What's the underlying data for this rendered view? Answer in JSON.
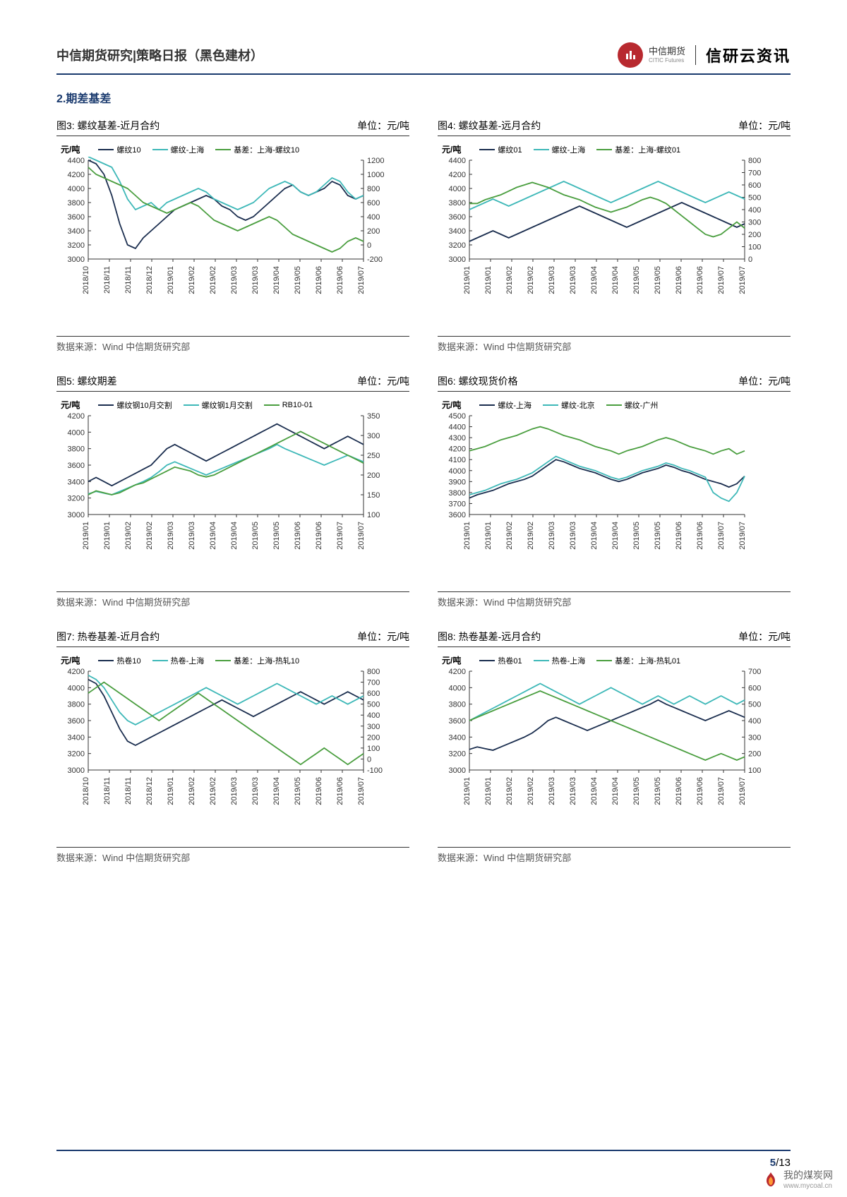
{
  "header": {
    "left": "中信期货研究|策略日报（黑色建材）",
    "logo_main": "中信期货",
    "logo_sub": "CITIC Futures",
    "brand": "信研云资讯"
  },
  "section_title": "2.期差基差",
  "data_source": "数据来源：Wind  中信期货研究部",
  "colors": {
    "dark_navy": "#1a2d4e",
    "teal": "#3eb8b8",
    "green": "#4a9e3f",
    "axis": "#333333",
    "grid": "#cccccc",
    "header_blue": "#1a3a6e",
    "logo_red": "#b8292f"
  },
  "charts": [
    {
      "id": "chart3",
      "title": "图3: 螺纹基差-近月合约",
      "unit": "单位：元/吨",
      "y_left_title": "元/吨",
      "y_left": {
        "min": 3000,
        "max": 4400,
        "step": 200
      },
      "y_right": {
        "min": -200,
        "max": 1200,
        "step": 200
      },
      "x_labels": [
        "2018/10",
        "2018/11",
        "2018/11",
        "2018/12",
        "2019/01",
        "2019/02",
        "2019/02",
        "2019/03",
        "2019/03",
        "2019/04",
        "2019/05",
        "2019/06",
        "2019/06",
        "2019/07"
      ],
      "legend": [
        {
          "name": "螺纹10",
          "color": "#1a2d4e"
        },
        {
          "name": "螺纹-上海",
          "color": "#3eb8b8"
        },
        {
          "name": "基差：上海-螺纹10",
          "color": "#4a9e3f"
        }
      ],
      "series": [
        {
          "color": "#1a2d4e",
          "axis": "left",
          "data": [
            4400,
            4350,
            4200,
            3900,
            3500,
            3200,
            3150,
            3300,
            3400,
            3500,
            3600,
            3700,
            3750,
            3800,
            3850,
            3900,
            3850,
            3750,
            3700,
            3600,
            3550,
            3600,
            3700,
            3800,
            3900,
            4000,
            4050,
            3950,
            3900,
            3950,
            4000,
            4100,
            4050,
            3900,
            3850,
            3900
          ]
        },
        {
          "color": "#3eb8b8",
          "axis": "left",
          "data": [
            4450,
            4400,
            4350,
            4300,
            4100,
            3850,
            3700,
            3750,
            3800,
            3700,
            3800,
            3850,
            3900,
            3950,
            4000,
            3950,
            3850,
            3800,
            3750,
            3700,
            3750,
            3800,
            3900,
            4000,
            4050,
            4100,
            4050,
            3950,
            3900,
            3950,
            4050,
            4150,
            4100,
            3950,
            3850,
            3900
          ]
        },
        {
          "color": "#4a9e3f",
          "axis": "right",
          "data": [
            1100,
            1000,
            950,
            900,
            850,
            800,
            700,
            600,
            550,
            500,
            450,
            500,
            550,
            600,
            550,
            450,
            350,
            300,
            250,
            200,
            250,
            300,
            350,
            400,
            350,
            250,
            150,
            100,
            50,
            0,
            -50,
            -100,
            -50,
            50,
            100,
            50
          ]
        }
      ]
    },
    {
      "id": "chart4",
      "title": "图4: 螺纹基差-远月合约",
      "unit": "单位：元/吨",
      "y_left_title": "元/吨",
      "y_left": {
        "min": 3000,
        "max": 4400,
        "step": 200
      },
      "y_right": {
        "min": 0,
        "max": 800,
        "step": 100
      },
      "x_labels": [
        "2019/01",
        "2019/01",
        "2019/02",
        "2019/02",
        "2019/03",
        "2019/03",
        "2019/04",
        "2019/04",
        "2019/05",
        "2019/05",
        "2019/06",
        "2019/06",
        "2019/07",
        "2019/07"
      ],
      "legend": [
        {
          "name": "螺纹01",
          "color": "#1a2d4e"
        },
        {
          "name": "螺纹-上海",
          "color": "#3eb8b8"
        },
        {
          "name": "基差：上海-螺纹01",
          "color": "#4a9e3f"
        }
      ],
      "series": [
        {
          "color": "#1a2d4e",
          "axis": "left",
          "data": [
            3250,
            3300,
            3350,
            3400,
            3350,
            3300,
            3350,
            3400,
            3450,
            3500,
            3550,
            3600,
            3650,
            3700,
            3750,
            3700,
            3650,
            3600,
            3550,
            3500,
            3450,
            3500,
            3550,
            3600,
            3650,
            3700,
            3750,
            3800,
            3750,
            3700,
            3650,
            3600,
            3550,
            3500,
            3450,
            3500
          ]
        },
        {
          "color": "#3eb8b8",
          "axis": "left",
          "data": [
            3700,
            3750,
            3800,
            3850,
            3800,
            3750,
            3800,
            3850,
            3900,
            3950,
            4000,
            4050,
            4100,
            4050,
            4000,
            3950,
            3900,
            3850,
            3800,
            3850,
            3900,
            3950,
            4000,
            4050,
            4100,
            4050,
            4000,
            3950,
            3900,
            3850,
            3800,
            3850,
            3900,
            3950,
            3900,
            3850
          ]
        },
        {
          "color": "#4a9e3f",
          "axis": "right",
          "data": [
            450,
            450,
            480,
            500,
            520,
            550,
            580,
            600,
            620,
            600,
            580,
            550,
            520,
            500,
            480,
            450,
            420,
            400,
            380,
            400,
            420,
            450,
            480,
            500,
            480,
            450,
            400,
            350,
            300,
            250,
            200,
            180,
            200,
            250,
            300,
            250
          ]
        }
      ]
    },
    {
      "id": "chart5",
      "title": "图5: 螺纹期差",
      "unit": "单位：元/吨",
      "y_left_title": "元/吨",
      "y_left": {
        "min": 3000,
        "max": 4200,
        "step": 200
      },
      "y_right": {
        "min": 100,
        "max": 350,
        "step": 50
      },
      "x_labels": [
        "2019/01",
        "2019/01",
        "2019/02",
        "2019/02",
        "2019/03",
        "2019/03",
        "2019/04",
        "2019/04",
        "2019/05",
        "2019/05",
        "2019/06",
        "2019/06",
        "2019/07",
        "2019/07"
      ],
      "legend": [
        {
          "name": "螺纹钢10月交割",
          "color": "#1a2d4e"
        },
        {
          "name": "螺纹钢1月交割",
          "color": "#3eb8b8"
        },
        {
          "name": "RB10-01",
          "color": "#4a9e3f"
        }
      ],
      "series": [
        {
          "color": "#1a2d4e",
          "axis": "left",
          "data": [
            3400,
            3450,
            3400,
            3350,
            3400,
            3450,
            3500,
            3550,
            3600,
            3700,
            3800,
            3850,
            3800,
            3750,
            3700,
            3650,
            3700,
            3750,
            3800,
            3850,
            3900,
            3950,
            4000,
            4050,
            4100,
            4050,
            4000,
            3950,
            3900,
            3850,
            3800,
            3850,
            3900,
            3950,
            3900,
            3850
          ]
        },
        {
          "color": "#3eb8b8",
          "axis": "left",
          "data": [
            3250,
            3280,
            3260,
            3240,
            3280,
            3320,
            3360,
            3400,
            3450,
            3520,
            3600,
            3640,
            3600,
            3560,
            3520,
            3480,
            3520,
            3560,
            3600,
            3640,
            3680,
            3720,
            3760,
            3800,
            3850,
            3800,
            3760,
            3720,
            3680,
            3640,
            3600,
            3640,
            3680,
            3720,
            3680,
            3640
          ]
        },
        {
          "color": "#4a9e3f",
          "axis": "right",
          "data": [
            150,
            160,
            155,
            150,
            155,
            165,
            175,
            180,
            190,
            200,
            210,
            220,
            215,
            210,
            200,
            195,
            200,
            210,
            220,
            230,
            240,
            250,
            260,
            270,
            280,
            290,
            300,
            310,
            300,
            290,
            280,
            270,
            260,
            250,
            240,
            230
          ]
        }
      ]
    },
    {
      "id": "chart6",
      "title": "图6: 螺纹现货价格",
      "unit": "单位：元/吨",
      "y_left_title": "元/吨",
      "y_left": {
        "min": 3600,
        "max": 4500,
        "step": 100
      },
      "y_right": null,
      "x_labels": [
        "2019/01",
        "2019/01",
        "2019/02",
        "2019/02",
        "2019/03",
        "2019/03",
        "2019/04",
        "2019/04",
        "2019/05",
        "2019/05",
        "2019/06",
        "2019/06",
        "2019/07",
        "2019/07"
      ],
      "legend": [
        {
          "name": "螺纹-上海",
          "color": "#1a2d4e"
        },
        {
          "name": "螺纹-北京",
          "color": "#3eb8b8"
        },
        {
          "name": "螺纹-广州",
          "color": "#4a9e3f"
        }
      ],
      "series": [
        {
          "color": "#1a2d4e",
          "axis": "left",
          "data": [
            3750,
            3780,
            3800,
            3820,
            3850,
            3880,
            3900,
            3920,
            3950,
            4000,
            4050,
            4100,
            4080,
            4050,
            4020,
            4000,
            3980,
            3950,
            3920,
            3900,
            3920,
            3950,
            3980,
            4000,
            4020,
            4050,
            4030,
            4000,
            3980,
            3950,
            3920,
            3900,
            3880,
            3850,
            3880,
            3950
          ]
        },
        {
          "color": "#3eb8b8",
          "axis": "left",
          "data": [
            3780,
            3800,
            3820,
            3850,
            3880,
            3900,
            3920,
            3950,
            3980,
            4030,
            4080,
            4130,
            4100,
            4070,
            4040,
            4020,
            4000,
            3970,
            3940,
            3920,
            3940,
            3970,
            4000,
            4020,
            4040,
            4070,
            4050,
            4020,
            4000,
            3970,
            3940,
            3800,
            3750,
            3720,
            3800,
            3950
          ]
        },
        {
          "color": "#4a9e3f",
          "axis": "left",
          "data": [
            4180,
            4200,
            4220,
            4250,
            4280,
            4300,
            4320,
            4350,
            4380,
            4400,
            4380,
            4350,
            4320,
            4300,
            4280,
            4250,
            4220,
            4200,
            4180,
            4150,
            4180,
            4200,
            4220,
            4250,
            4280,
            4300,
            4280,
            4250,
            4220,
            4200,
            4180,
            4150,
            4180,
            4200,
            4150,
            4180
          ]
        }
      ]
    },
    {
      "id": "chart7",
      "title": "图7: 热卷基差-近月合约",
      "unit": "单位：元/吨",
      "y_left_title": "元/吨",
      "y_left": {
        "min": 3000,
        "max": 4200,
        "step": 200
      },
      "y_right": {
        "min": -100,
        "max": 800,
        "step": 100
      },
      "x_labels": [
        "2018/10",
        "2018/11",
        "2018/11",
        "2018/12",
        "2019/01",
        "2019/02",
        "2019/02",
        "2019/03",
        "2019/03",
        "2019/04",
        "2019/05",
        "2019/06",
        "2019/06",
        "2019/07"
      ],
      "legend": [
        {
          "name": "热卷10",
          "color": "#1a2d4e"
        },
        {
          "name": "热卷-上海",
          "color": "#3eb8b8"
        },
        {
          "name": "基差：上海-热轧10",
          "color": "#4a9e3f"
        }
      ],
      "series": [
        {
          "color": "#1a2d4e",
          "axis": "left",
          "data": [
            4100,
            4050,
            3900,
            3700,
            3500,
            3350,
            3300,
            3350,
            3400,
            3450,
            3500,
            3550,
            3600,
            3650,
            3700,
            3750,
            3800,
            3850,
            3800,
            3750,
            3700,
            3650,
            3700,
            3750,
            3800,
            3850,
            3900,
            3950,
            3900,
            3850,
            3800,
            3850,
            3900,
            3950,
            3900,
            3850
          ]
        },
        {
          "color": "#3eb8b8",
          "axis": "left",
          "data": [
            4150,
            4100,
            4000,
            3850,
            3700,
            3600,
            3550,
            3600,
            3650,
            3700,
            3750,
            3800,
            3850,
            3900,
            3950,
            4000,
            3950,
            3900,
            3850,
            3800,
            3850,
            3900,
            3950,
            4000,
            4050,
            4000,
            3950,
            3900,
            3850,
            3800,
            3850,
            3900,
            3850,
            3800,
            3850,
            3900
          ]
        },
        {
          "color": "#4a9e3f",
          "axis": "right",
          "data": [
            600,
            650,
            700,
            650,
            600,
            550,
            500,
            450,
            400,
            350,
            400,
            450,
            500,
            550,
            600,
            550,
            500,
            450,
            400,
            350,
            300,
            250,
            200,
            150,
            100,
            50,
            0,
            -50,
            0,
            50,
            100,
            50,
            0,
            -50,
            0,
            50
          ]
        }
      ]
    },
    {
      "id": "chart8",
      "title": "图8: 热卷基差-远月合约",
      "unit": "单位：元/吨",
      "y_left_title": "元/吨",
      "y_left": {
        "min": 3000,
        "max": 4200,
        "step": 200
      },
      "y_right": {
        "min": 100,
        "max": 700,
        "step": 100
      },
      "x_labels": [
        "2019/01",
        "2019/01",
        "2019/02",
        "2019/02",
        "2019/03",
        "2019/03",
        "2019/04",
        "2019/04",
        "2019/05",
        "2019/05",
        "2019/06",
        "2019/06",
        "2019/07",
        "2019/07"
      ],
      "legend": [
        {
          "name": "热卷01",
          "color": "#1a2d4e"
        },
        {
          "name": "热卷-上海",
          "color": "#3eb8b8"
        },
        {
          "name": "基差：上海-热轧01",
          "color": "#4a9e3f"
        }
      ],
      "series": [
        {
          "color": "#1a2d4e",
          "axis": "left",
          "data": [
            3250,
            3280,
            3260,
            3240,
            3280,
            3320,
            3360,
            3400,
            3450,
            3520,
            3600,
            3640,
            3600,
            3560,
            3520,
            3480,
            3520,
            3560,
            3600,
            3640,
            3680,
            3720,
            3760,
            3800,
            3850,
            3800,
            3760,
            3720,
            3680,
            3640,
            3600,
            3640,
            3680,
            3720,
            3680,
            3640
          ]
        },
        {
          "color": "#3eb8b8",
          "axis": "left",
          "data": [
            3600,
            3650,
            3700,
            3750,
            3800,
            3850,
            3900,
            3950,
            4000,
            4050,
            4000,
            3950,
            3900,
            3850,
            3800,
            3850,
            3900,
            3950,
            4000,
            3950,
            3900,
            3850,
            3800,
            3850,
            3900,
            3850,
            3800,
            3850,
            3900,
            3850,
            3800,
            3850,
            3900,
            3850,
            3800,
            3850
          ]
        },
        {
          "color": "#4a9e3f",
          "axis": "right",
          "data": [
            400,
            420,
            440,
            460,
            480,
            500,
            520,
            540,
            560,
            580,
            560,
            540,
            520,
            500,
            480,
            460,
            440,
            420,
            400,
            380,
            360,
            340,
            320,
            300,
            280,
            260,
            240,
            220,
            200,
            180,
            160,
            180,
            200,
            180,
            160,
            180
          ]
        }
      ]
    }
  ],
  "page": {
    "current": "5",
    "total": "/13"
  },
  "watermark": {
    "text": "我的煤炭网",
    "url": "www.mycoal.cn"
  }
}
